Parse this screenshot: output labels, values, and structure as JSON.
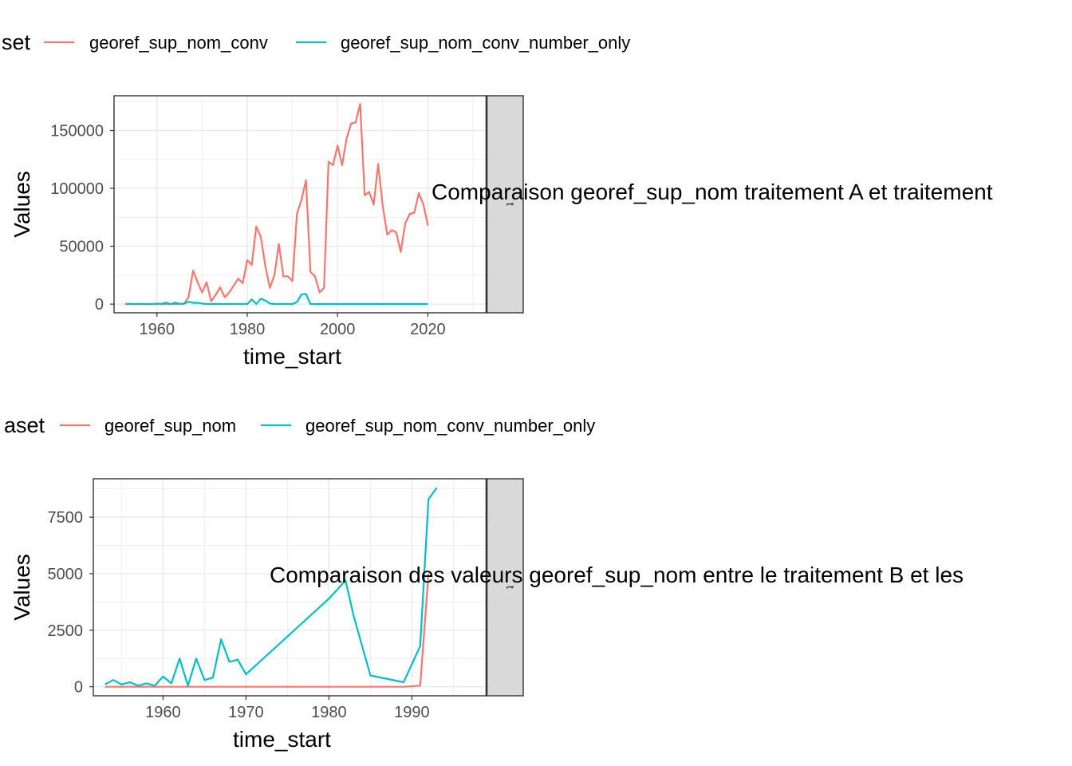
{
  "colors": {
    "series_a": "#F8766D",
    "series_b": "#00BFC4",
    "strip": "#D9D9D9",
    "grid": "#EBEBEB",
    "frame": "#333333"
  },
  "chart_data": [
    {
      "type": "line",
      "legend_title": "set",
      "legend_position": "top",
      "xlabel": "time_start",
      "ylabel": "Values",
      "overlay_title": "Comparaison georef_sup_nom traitement A et traitement",
      "strip_label": "t",
      "xlim": [
        1950.5,
        2033
      ],
      "ylim": [
        -7500,
        180000
      ],
      "x_ticks": [
        1960,
        1980,
        2000,
        2020
      ],
      "y_ticks": [
        0,
        50000,
        100000,
        150000
      ],
      "x_tick_labels": [
        "1960",
        "1980",
        "2000",
        "2020"
      ],
      "y_tick_labels": [
        "0",
        "50000",
        "100000",
        "150000"
      ],
      "series": [
        {
          "name": "georef_sup_nom_conv",
          "x": [
            1953,
            1954,
            1955,
            1956,
            1957,
            1958,
            1959,
            1960,
            1961,
            1962,
            1963,
            1964,
            1965,
            1966,
            1967,
            1968,
            1969,
            1970,
            1971,
            1972,
            1973,
            1974,
            1975,
            1976,
            1977,
            1978,
            1979,
            1980,
            1981,
            1982,
            1983,
            1984,
            1985,
            1986,
            1987,
            1988,
            1989,
            1990,
            1991,
            1992,
            1993,
            1994,
            1995,
            1996,
            1997,
            1998,
            1999,
            2000,
            2001,
            2002,
            2003,
            2004,
            2005,
            2006,
            2007,
            2008,
            2009,
            2010,
            2011,
            2012,
            2013,
            2014,
            2015,
            2016,
            2017,
            2018,
            2019,
            2020
          ],
          "values": [
            0,
            0,
            0,
            0,
            0,
            0,
            0,
            0,
            0,
            0,
            0,
            0,
            0,
            200,
            6000,
            29000,
            19000,
            10000,
            19000,
            2500,
            8000,
            14500,
            6000,
            10000,
            16000,
            22000,
            18000,
            38000,
            34000,
            67000,
            58000,
            33000,
            14000,
            25000,
            52000,
            24000,
            24000,
            20000,
            78000,
            90000,
            107000,
            28000,
            24000,
            10000,
            14000,
            123000,
            120000,
            137000,
            120000,
            143000,
            156000,
            157000,
            173000,
            94000,
            97000,
            86000,
            121000,
            85000,
            60000,
            64000,
            62000,
            45000,
            70000,
            78000,
            79000,
            96000,
            86000,
            68000
          ]
        },
        {
          "name": "georef_sup_nom_conv_number_only",
          "x": [
            1953,
            1954,
            1955,
            1956,
            1957,
            1958,
            1959,
            1960,
            1961,
            1962,
            1963,
            1964,
            1965,
            1966,
            1967,
            1968,
            1969,
            1970,
            1971,
            1972,
            1973,
            1974,
            1975,
            1976,
            1977,
            1978,
            1979,
            1980,
            1981,
            1982,
            1983,
            1984,
            1985,
            1986,
            1987,
            1988,
            1989,
            1990,
            1991,
            1992,
            1993,
            1994,
            1995,
            2000,
            2010,
            2020
          ],
          "values": [
            100,
            300,
            100,
            200,
            50,
            150,
            50,
            450,
            200,
            1250,
            50,
            1250,
            300,
            400,
            2100,
            1100,
            1200,
            550,
            100,
            100,
            100,
            100,
            100,
            100,
            100,
            100,
            100,
            100,
            4000,
            200,
            4700,
            3100,
            500,
            100,
            100,
            100,
            100,
            100,
            1800,
            8300,
            8800,
            100,
            0,
            0,
            0,
            0
          ]
        }
      ]
    },
    {
      "type": "line",
      "legend_title": "aset",
      "legend_position": "top",
      "xlabel": "time_start",
      "ylabel": "Values",
      "overlay_title": "Comparaison des valeurs georef_sup_nom entre le traitement B et les",
      "strip_label": "t",
      "xlim": [
        1951.6,
        1999
      ],
      "ylim": [
        -400,
        9200
      ],
      "x_ticks": [
        1960,
        1970,
        1980,
        1990
      ],
      "y_ticks": [
        0,
        2500,
        5000,
        7500
      ],
      "x_tick_labels": [
        "1960",
        "1970",
        "1980",
        "1990"
      ],
      "y_tick_labels": [
        "0",
        "2500",
        "5000",
        "7500"
      ],
      "series": [
        {
          "name": "georef_sup_nom",
          "x": [
            1953,
            1989,
            1991,
            1992
          ],
          "values": [
            0,
            0,
            50,
            5000
          ]
        },
        {
          "name": "georef_sup_nom_conv_number_only",
          "x": [
            1953,
            1954,
            1955,
            1956,
            1957,
            1958,
            1959,
            1960,
            1961,
            1962,
            1963,
            1964,
            1965,
            1966,
            1967,
            1968,
            1969,
            1970,
            1980,
            1982,
            1983,
            1985,
            1989,
            1991,
            1992,
            1993
          ],
          "values": [
            100,
            300,
            100,
            200,
            50,
            150,
            50,
            450,
            150,
            1250,
            50,
            1250,
            300,
            400,
            2100,
            1100,
            1200,
            550,
            3900,
            4700,
            3100,
            500,
            200,
            1800,
            8300,
            8800
          ]
        }
      ]
    }
  ]
}
